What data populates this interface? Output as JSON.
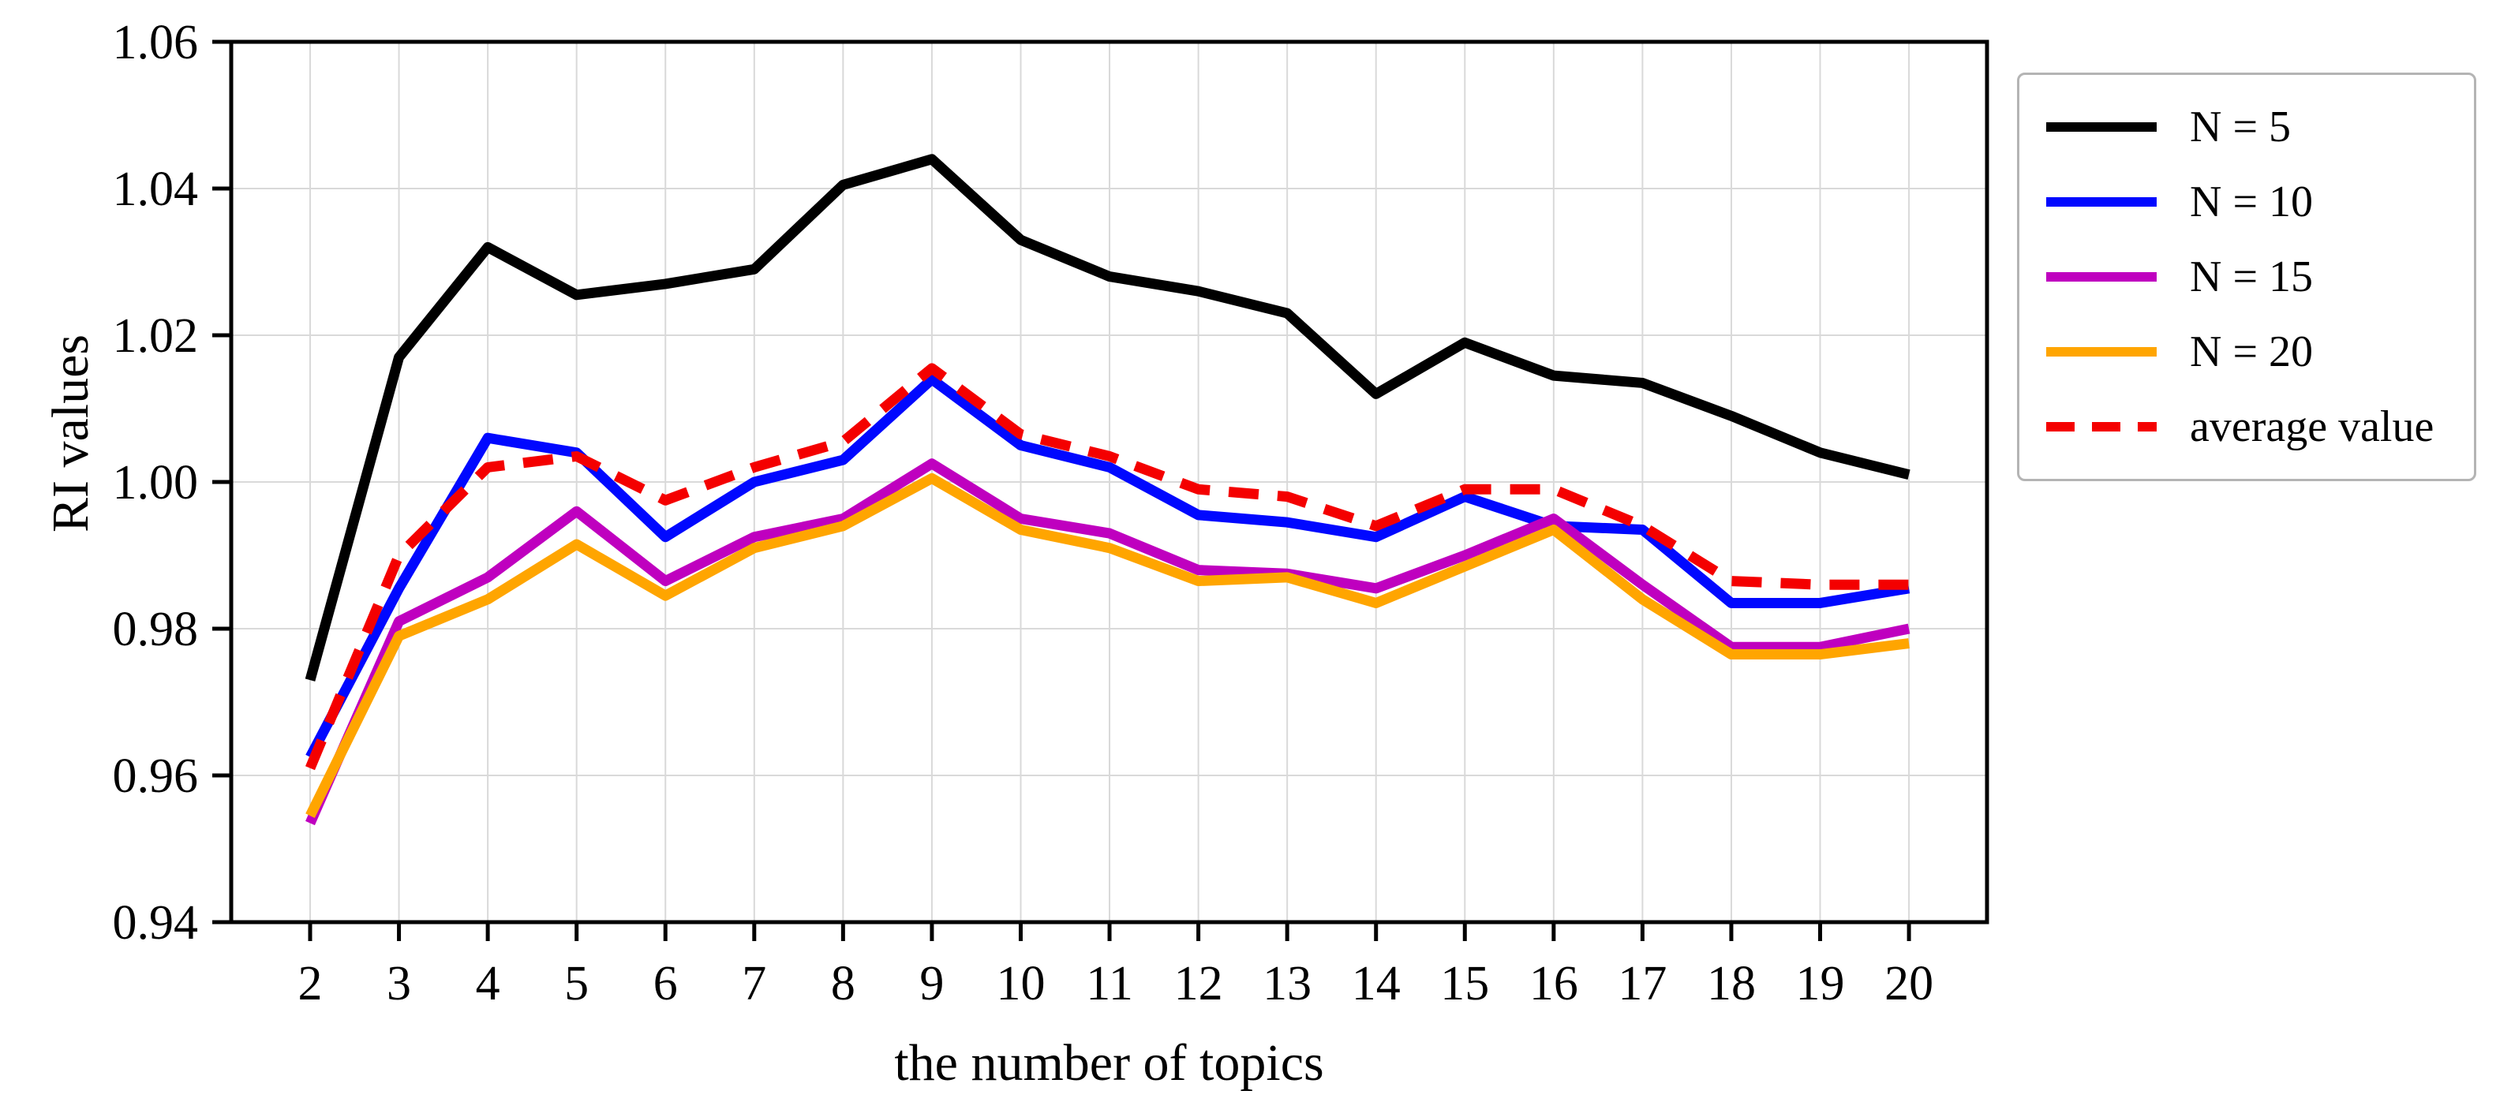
{
  "chart_data": {
    "type": "line",
    "title": "",
    "xlabel": "the number of topics",
    "ylabel": "RI values",
    "x": [
      2,
      3,
      4,
      5,
      6,
      7,
      8,
      9,
      10,
      11,
      12,
      13,
      14,
      15,
      16,
      17,
      18,
      19,
      20
    ],
    "xtick_labels": [
      "2",
      "3",
      "4",
      "5",
      "6",
      "7",
      "8",
      "9",
      "10",
      "11",
      "12",
      "13",
      "14",
      "15",
      "16",
      "17",
      "18",
      "19",
      "20"
    ],
    "ylim": [
      0.94,
      1.06
    ],
    "yticks": [
      0.94,
      0.96,
      0.98,
      1.0,
      1.02,
      1.04,
      1.06
    ],
    "ytick_labels": [
      "0.94",
      "0.96",
      "0.98",
      "1.00",
      "1.02",
      "1.04",
      "1.06"
    ],
    "grid": true,
    "grid_color": "#d9d9d9",
    "axis_color": "#000000",
    "legend_position": "outside-upper-right",
    "series": [
      {
        "name": "N = 5",
        "color": "#000000",
        "dash": null,
        "values": [
          0.973,
          1.017,
          1.032,
          1.0255,
          1.027,
          1.029,
          1.0405,
          1.044,
          1.033,
          1.028,
          1.026,
          1.023,
          1.012,
          1.019,
          1.0145,
          1.0135,
          1.009,
          1.004,
          1.001
        ]
      },
      {
        "name": "N = 10",
        "color": "#0008ff",
        "dash": null,
        "values": [
          0.9625,
          0.9855,
          1.006,
          1.004,
          0.9925,
          1.0,
          1.003,
          1.014,
          1.005,
          1.002,
          0.9955,
          0.9945,
          0.9925,
          0.998,
          0.994,
          0.9935,
          0.9835,
          0.9835,
          0.9855
        ]
      },
      {
        "name": "N = 15",
        "color": "#bf00bf",
        "dash": null,
        "values": [
          0.9535,
          0.981,
          0.987,
          0.996,
          0.9865,
          0.9925,
          0.995,
          1.0025,
          0.995,
          0.993,
          0.988,
          0.9875,
          0.9855,
          0.99,
          0.995,
          0.986,
          0.9775,
          0.9775,
          0.98
        ]
      },
      {
        "name": "N = 20",
        "color": "#ffa500",
        "dash": null,
        "values": [
          0.9545,
          0.979,
          0.984,
          0.9915,
          0.9845,
          0.991,
          0.994,
          1.0005,
          0.9935,
          0.991,
          0.9865,
          0.987,
          0.9835,
          0.9885,
          0.9935,
          0.984,
          0.9765,
          0.9765,
          0.978
        ]
      },
      {
        "name": "average value",
        "color": "#f40000",
        "dash": [
          38,
          24
        ],
        "values": [
          0.961,
          0.99,
          1.002,
          1.0035,
          0.9975,
          1.002,
          1.0055,
          1.0155,
          1.0065,
          1.0035,
          0.999,
          0.998,
          0.994,
          0.999,
          0.999,
          0.994,
          0.9865,
          0.986,
          0.986
        ]
      }
    ]
  }
}
